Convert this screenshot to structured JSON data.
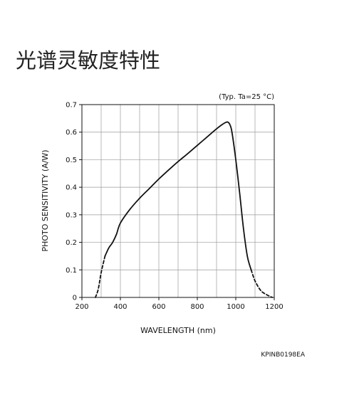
{
  "page": {
    "title": "光谱灵敏度特性"
  },
  "chart_data": {
    "type": "line",
    "title": "",
    "condition_note": "(Typ. Ta=25 °C)",
    "figure_code": "KPINB0198EA",
    "xlabel": "WAVELENGTH (nm)",
    "ylabel": "PHOTO SENSITIVITY (A/W)",
    "xlim": [
      200,
      1200
    ],
    "ylim": [
      0,
      0.7
    ],
    "x_major_ticks": [
      200,
      400,
      600,
      800,
      1000,
      1200
    ],
    "x_tick_labels": [
      "200",
      "400",
      "600",
      "800",
      "1000",
      "1200"
    ],
    "x_minor_step": 100,
    "y_ticks": [
      0,
      0.1,
      0.2,
      0.3,
      0.4,
      0.5,
      0.6,
      0.7
    ],
    "y_tick_labels": [
      "0",
      "0.1",
      "0.2",
      "0.3",
      "0.4",
      "0.5",
      "0.6",
      "0.7"
    ],
    "grid": true,
    "series": [
      {
        "style": "dashed",
        "x": [
          270,
          285,
          300,
          320
        ],
        "y": [
          0.0,
          0.03,
          0.09,
          0.15
        ]
      },
      {
        "style": "solid",
        "x": [
          320,
          340,
          360,
          380,
          400,
          450,
          500,
          550,
          600,
          650,
          700,
          750,
          800,
          850,
          900,
          930,
          950,
          960,
          970,
          980,
          1000,
          1020,
          1040,
          1060,
          1080
        ],
        "y": [
          0.15,
          0.18,
          0.2,
          0.23,
          0.27,
          0.32,
          0.36,
          0.395,
          0.43,
          0.462,
          0.493,
          0.522,
          0.552,
          0.582,
          0.612,
          0.628,
          0.636,
          0.636,
          0.626,
          0.6,
          0.5,
          0.38,
          0.25,
          0.15,
          0.1
        ]
      },
      {
        "style": "dashed",
        "x": [
          1080,
          1100,
          1130,
          1160,
          1190
        ],
        "y": [
          0.1,
          0.06,
          0.025,
          0.01,
          0.0
        ]
      }
    ],
    "colors": {
      "curve": "#111111",
      "grid": "#9a9a9a",
      "frame": "#111111"
    }
  }
}
